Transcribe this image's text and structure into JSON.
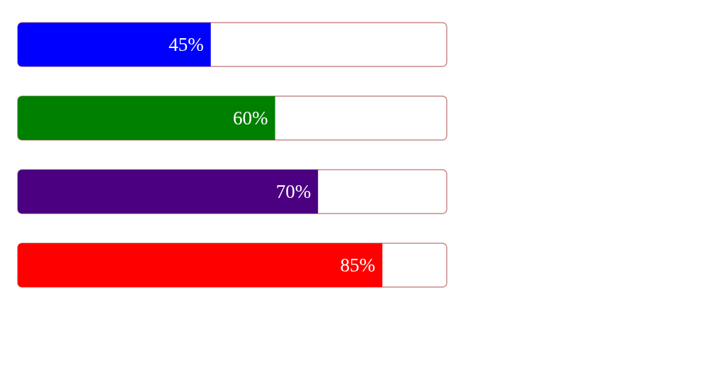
{
  "chart_data": {
    "type": "bar",
    "orientation": "horizontal",
    "categories": [
      null,
      null,
      null,
      null
    ],
    "values": [
      45,
      60,
      70,
      85
    ],
    "colors": [
      "#0000ff",
      "#008000",
      "#4b0082",
      "#ff0000"
    ],
    "value_labels": [
      "45%",
      "60%",
      "70%",
      "85%"
    ],
    "xlim": [
      0,
      100
    ]
  }
}
